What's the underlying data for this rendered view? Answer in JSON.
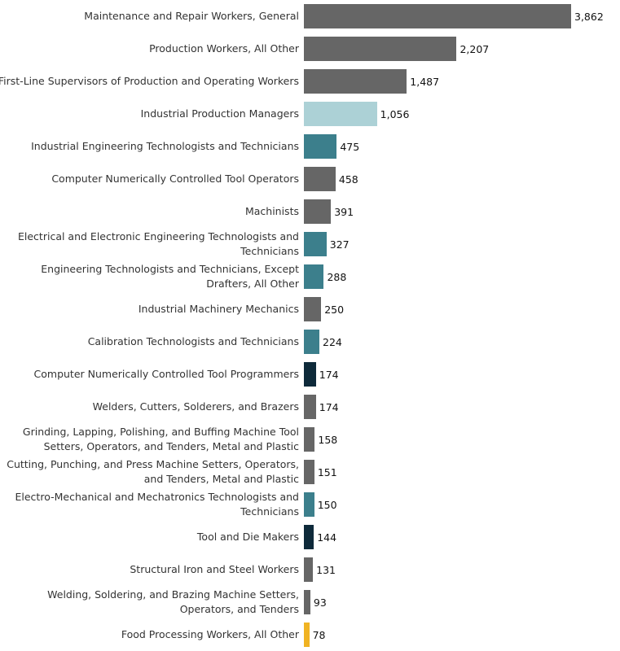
{
  "chart_data": {
    "type": "bar",
    "orientation": "horizontal",
    "title": "",
    "xlabel": "",
    "ylabel": "",
    "xlim": [
      0,
      3862
    ],
    "grid": false,
    "colors": {
      "default": "#666666",
      "highlight": "#acd1d6",
      "related": "#3c7f8c",
      "programming": "#0e2a3a",
      "other": "#f0b323"
    },
    "categories": [
      "Maintenance and Repair Workers, General",
      "Production Workers, All Other",
      "First-Line Supervisors of Production and Operating Workers",
      "Industrial Production Managers",
      "Industrial Engineering Technologists and Technicians",
      "Computer Numerically Controlled Tool Operators",
      "Machinists",
      "Electrical and Electronic Engineering Technologists and Technicians",
      "Engineering Technologists and Technicians, Except Drafters, All Other",
      "Industrial Machinery Mechanics",
      "Calibration Technologists and Technicians",
      "Computer Numerically Controlled Tool Programmers",
      "Welders, Cutters, Solderers, and Brazers",
      "Grinding, Lapping, Polishing, and Buffing Machine Tool Setters, Operators, and Tenders, Metal and Plastic",
      "Cutting, Punching, and Press Machine Setters, Operators, and Tenders, Metal and Plastic",
      "Electro-Mechanical and Mechatronics Technologists and Technicians",
      "Tool and Die Makers",
      "Structural Iron and Steel Workers",
      "Welding, Soldering, and Brazing Machine Setters, Operators, and Tenders",
      "Food Processing Workers, All Other"
    ],
    "values": [
      3862,
      2207,
      1487,
      1056,
      475,
      458,
      391,
      327,
      288,
      250,
      224,
      174,
      174,
      158,
      151,
      150,
      144,
      131,
      93,
      78
    ],
    "value_labels": [
      "3,862",
      "2,207",
      "1,487",
      "1,056",
      "475",
      "458",
      "391",
      "327",
      "288",
      "250",
      "224",
      "174",
      "174",
      "158",
      "151",
      "150",
      "144",
      "131",
      "93",
      "78"
    ],
    "color_groups": [
      "default",
      "default",
      "default",
      "highlight",
      "related",
      "default",
      "default",
      "related",
      "related",
      "default",
      "related",
      "programming",
      "default",
      "default",
      "default",
      "related",
      "programming",
      "default",
      "default",
      "other"
    ]
  }
}
